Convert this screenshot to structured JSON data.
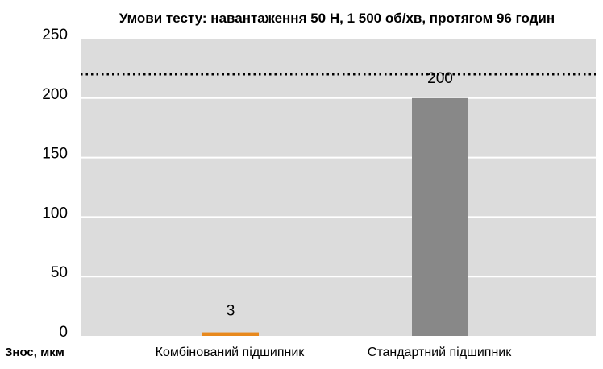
{
  "chart_data": {
    "type": "bar",
    "title": "Умови тесту: навантаження 50 Н, 1 500 об/хв, протягом 96 годин",
    "ylabel": "Знос, мкм",
    "xlabel": "",
    "categories": [
      "Комбінований підшипник",
      "Стандартний підшипник"
    ],
    "values": [
      3,
      200
    ],
    "data_labels": [
      "3",
      "200"
    ],
    "bar_colors": [
      "#e8891d",
      "#888888"
    ],
    "ylim": [
      0,
      250
    ],
    "yticks": [
      0,
      50,
      100,
      150,
      200,
      250
    ],
    "ytick_labels": [
      "0",
      "50",
      "100",
      "150",
      "200",
      "250"
    ],
    "reference_line": {
      "value": 220,
      "style": "dotted"
    },
    "grid": true,
    "plot_background": "#dcdcdc",
    "grid_color": "#ffffff",
    "legend": "none"
  }
}
